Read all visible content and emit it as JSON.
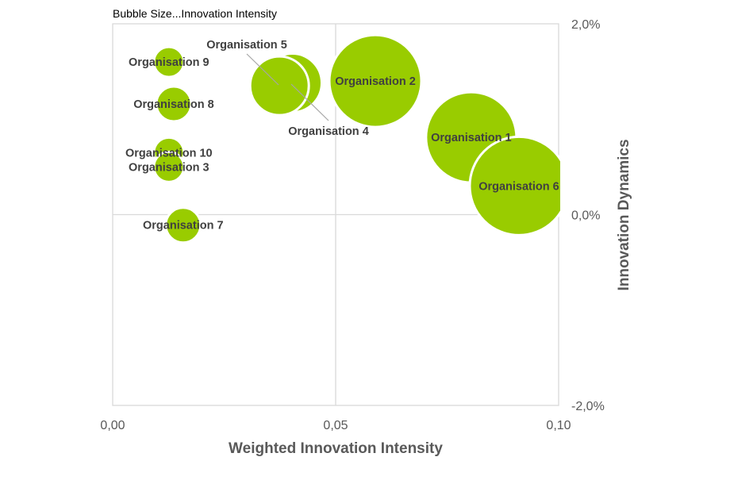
{
  "chart_data": {
    "type": "bubble",
    "title": "Bubble Size...Innovation Intensity",
    "xlabel": "Weighted Innovation Intensity",
    "ylabel": "Innovation Dynamics",
    "xlim": [
      0,
      0.1
    ],
    "ylim": [
      -2.0,
      2.0
    ],
    "x_ticks": [
      {
        "v": 0,
        "label": "0,00"
      },
      {
        "v": 0.05,
        "label": "0,05"
      },
      {
        "v": 0.1,
        "label": "0,10"
      }
    ],
    "y_ticks": [
      {
        "v": 2.0,
        "label": "2,0%"
      },
      {
        "v": 0,
        "label": "0,0%"
      },
      {
        "v": -2.0,
        "label": "-2,0%"
      }
    ],
    "y_axis_position": "right",
    "grid": "quadrant lines at x=0.05 and y=0",
    "bubble_color": "#99CC00",
    "points": [
      {
        "name": "Organisation 9",
        "x": 0.0126,
        "y": 1.6,
        "size": 0.094
      },
      {
        "name": "Organisation 8",
        "x": 0.0137,
        "y": 1.16,
        "size": 0.126
      },
      {
        "name": "Organisation 10",
        "x": 0.0126,
        "y": 0.65,
        "size": 0.094
      },
      {
        "name": "Organisation 3",
        "x": 0.0126,
        "y": 0.5,
        "size": 0.094
      },
      {
        "name": "Organisation 7",
        "x": 0.0158,
        "y": -0.11,
        "size": 0.126
      },
      {
        "name": "Organisation 4",
        "x": 0.0403,
        "y": 1.38,
        "size": 0.356
      },
      {
        "name": "Organisation 5",
        "x": 0.0374,
        "y": 1.35,
        "size": 0.356
      },
      {
        "name": "Organisation 2",
        "x": 0.0589,
        "y": 1.4,
        "size": 0.875
      },
      {
        "name": "Organisation 1",
        "x": 0.0804,
        "y": 0.81,
        "size": 0.845
      },
      {
        "name": "Organisation 6",
        "x": 0.0911,
        "y": 0.3,
        "size": 1.0
      }
    ]
  }
}
